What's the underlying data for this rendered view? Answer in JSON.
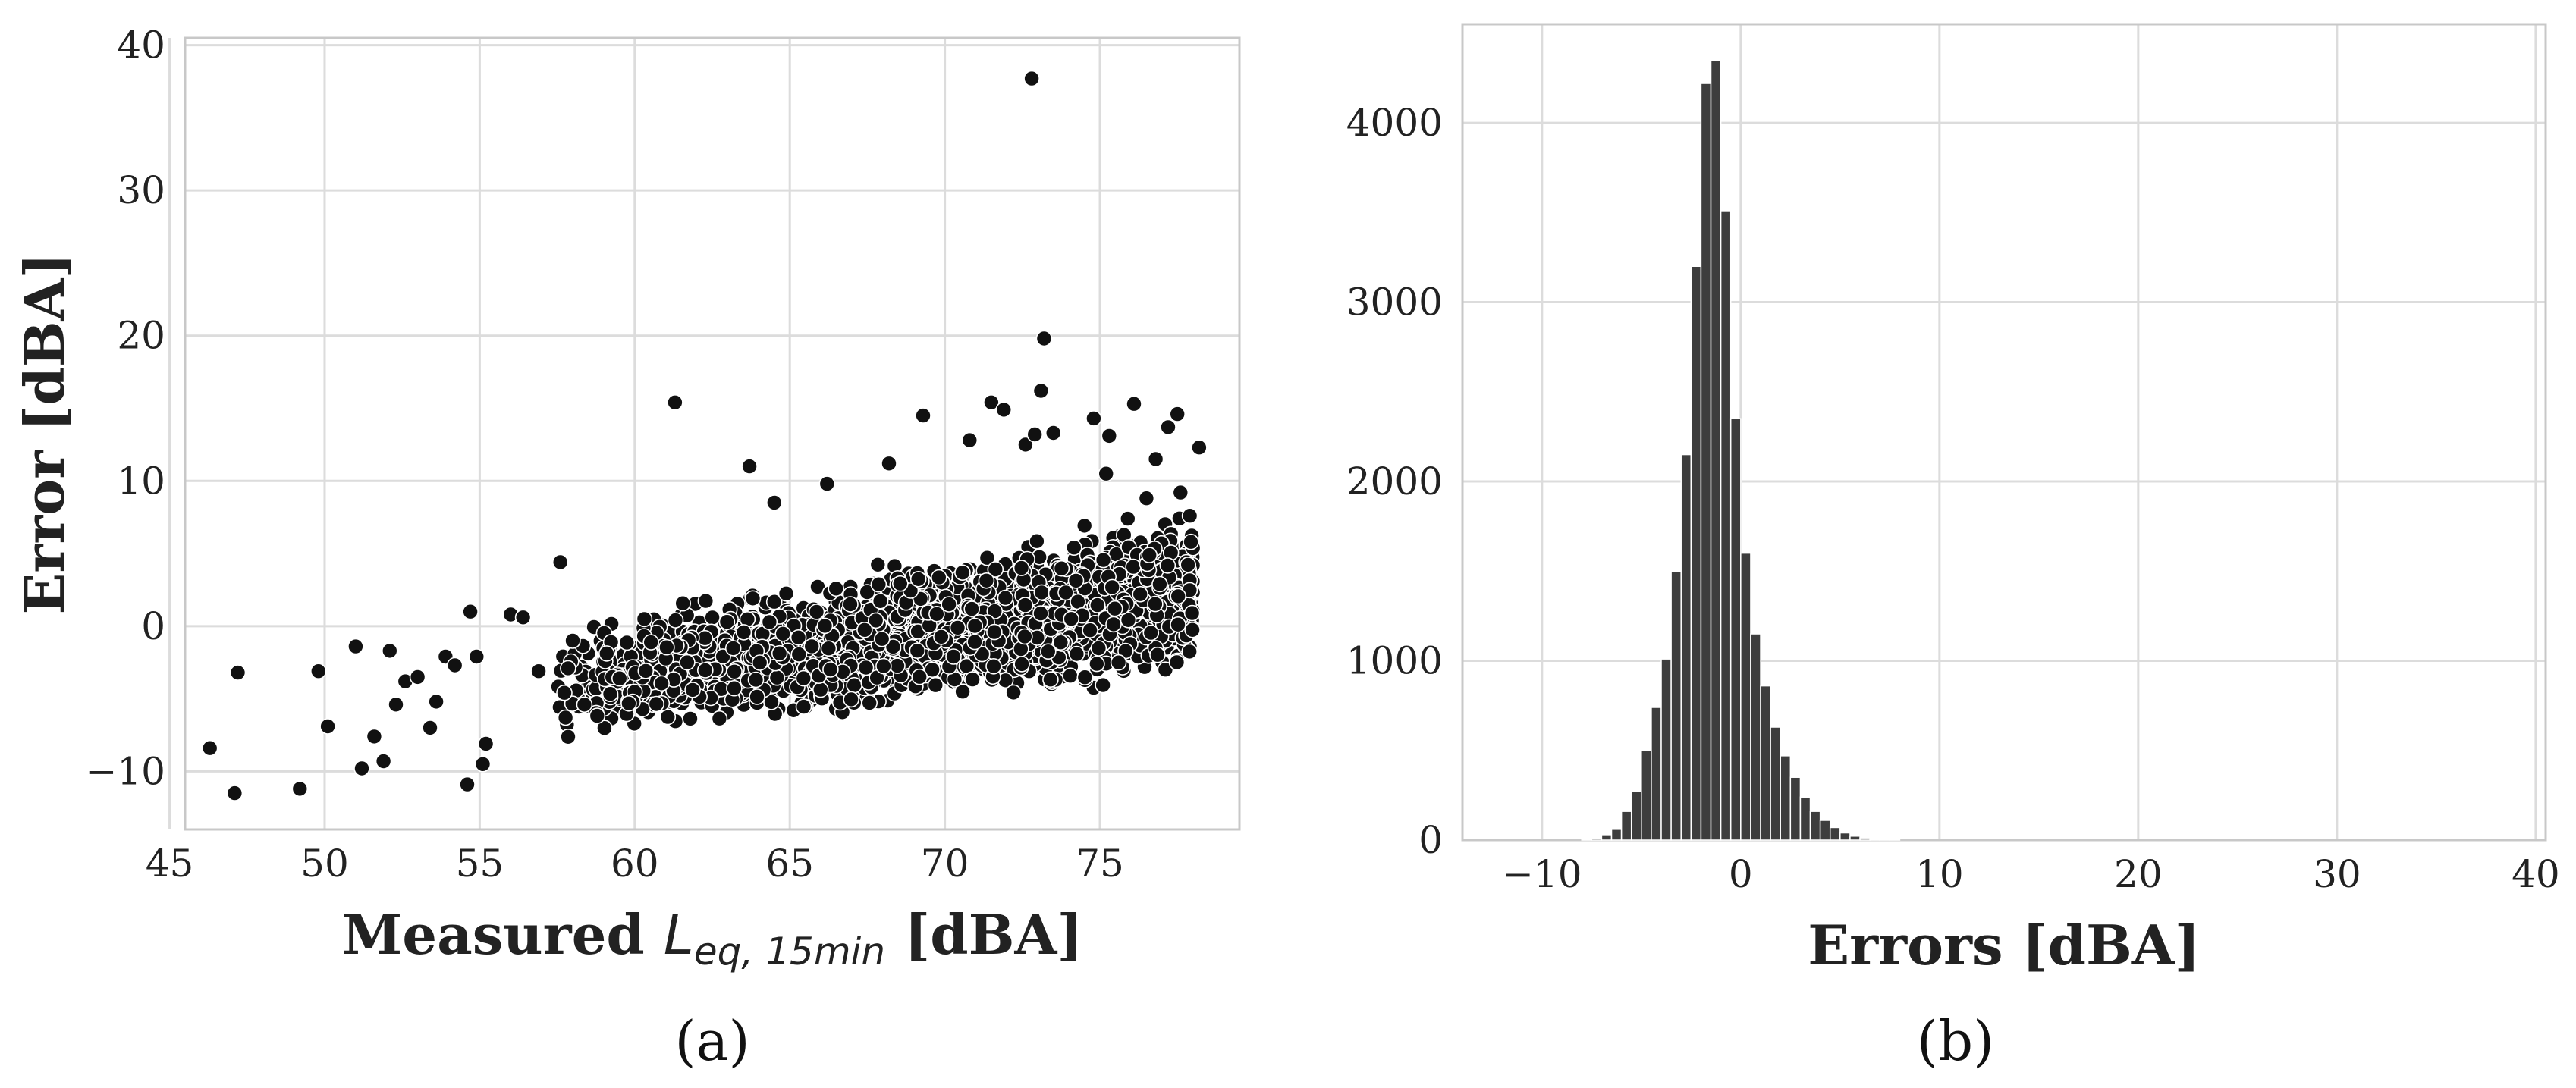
{
  "chart_data": [
    {
      "id": "a",
      "type": "scatter",
      "panel_label": "(a)",
      "xlabel_prefix": "Measured ",
      "xlabel_symbol": "L",
      "xlabel_subscript": "eq, 15min",
      "xlabel_suffix": " [dBA]",
      "ylabel": "Error [dBA]",
      "xlim": [
        45.5,
        79.5
      ],
      "ylim": [
        -14,
        40.5
      ],
      "xticks": [
        45,
        50,
        55,
        60,
        65,
        70,
        75
      ],
      "yticks": [
        -10,
        0,
        10,
        20,
        30,
        40
      ],
      "grid": true,
      "marker_color": "#111111",
      "outliers": [
        [
          46.3,
          -8.4
        ],
        [
          47.1,
          -11.5
        ],
        [
          47.2,
          -3.2
        ],
        [
          49.2,
          -11.2
        ],
        [
          49.8,
          -3.1
        ],
        [
          50.1,
          -6.9
        ],
        [
          51.0,
          -1.4
        ],
        [
          51.2,
          -9.8
        ],
        [
          51.6,
          -7.6
        ],
        [
          51.9,
          -9.3
        ],
        [
          52.1,
          -1.7
        ],
        [
          52.3,
          -5.4
        ],
        [
          52.6,
          -3.8
        ],
        [
          53.0,
          -3.5
        ],
        [
          53.4,
          -7.0
        ],
        [
          53.6,
          -5.2
        ],
        [
          53.9,
          -2.1
        ],
        [
          54.2,
          -2.7
        ],
        [
          54.6,
          -10.9
        ],
        [
          54.7,
          1.0
        ],
        [
          54.9,
          -2.1
        ],
        [
          55.2,
          -8.1
        ],
        [
          55.1,
          -9.5
        ],
        [
          56.0,
          0.8
        ],
        [
          56.4,
          0.6
        ],
        [
          56.9,
          -3.1
        ],
        [
          57.6,
          4.4
        ],
        [
          58.0,
          -1.0
        ],
        [
          61.3,
          15.4
        ],
        [
          63.7,
          11.0
        ],
        [
          64.5,
          8.5
        ],
        [
          66.2,
          9.8
        ],
        [
          68.2,
          11.2
        ],
        [
          69.3,
          14.5
        ],
        [
          70.8,
          12.8
        ],
        [
          71.5,
          15.4
        ],
        [
          71.9,
          14.9
        ],
        [
          72.6,
          12.5
        ],
        [
          72.8,
          37.7
        ],
        [
          72.9,
          13.2
        ],
        [
          73.1,
          16.2
        ],
        [
          73.2,
          19.8
        ],
        [
          73.5,
          13.3
        ],
        [
          74.8,
          14.3
        ],
        [
          75.3,
          13.1
        ],
        [
          76.1,
          15.3
        ],
        [
          77.2,
          13.7
        ],
        [
          77.5,
          14.6
        ],
        [
          78.2,
          12.3
        ],
        [
          77.9,
          7.6
        ],
        [
          77.6,
          9.2
        ],
        [
          76.8,
          11.5
        ],
        [
          75.9,
          7.4
        ],
        [
          76.5,
          8.8
        ],
        [
          76.3,
          2.2
        ],
        [
          75.6,
          -2.5
        ],
        [
          74.9,
          -2.6
        ],
        [
          75.2,
          10.5
        ]
      ],
      "bulk": {
        "x_range": [
          57.5,
          78.0
        ],
        "center": {
          "x": [
            57.5,
            78.0
          ],
          "y": [
            -4.5,
            2.0
          ]
        },
        "upper": {
          "x": [
            57.5,
            78.0
          ],
          "y": [
            0.5,
            9.0
          ]
        },
        "lower": {
          "x": [
            57.5,
            78.0
          ],
          "y": [
            -8.5,
            -4.0
          ]
        },
        "n_points": 2600
      }
    },
    {
      "id": "b",
      "type": "histogram",
      "panel_label": "(b)",
      "xlabel": "Errors [dBA]",
      "ylabel": "",
      "xlim": [
        -14,
        40.5
      ],
      "ylim": [
        0,
        4550
      ],
      "xticks": [
        -10,
        0,
        10,
        20,
        30,
        40
      ],
      "yticks": [
        0,
        1000,
        2000,
        3000,
        4000
      ],
      "tick_minus": "−",
      "grid": true,
      "bar_color": "#3d3d3d",
      "bin_start": -8.0,
      "bin_width": 0.5,
      "counts": [
        5,
        10,
        30,
        60,
        160,
        270,
        500,
        740,
        1010,
        1500,
        2150,
        3200,
        4220,
        4350,
        3510,
        2350,
        1600,
        1150,
        860,
        630,
        470,
        350,
        240,
        160,
        110,
        70,
        40,
        22,
        12,
        6,
        3,
        2
      ]
    }
  ]
}
